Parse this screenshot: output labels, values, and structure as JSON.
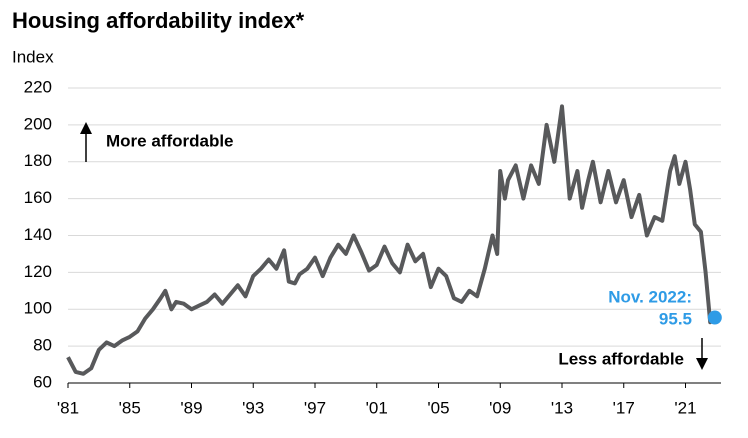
{
  "chart_data": {
    "type": "line",
    "title": "Housing affordability index*",
    "y_label": "Index",
    "x": [
      1981.0,
      1981.5,
      1982.0,
      1982.5,
      1983.0,
      1983.5,
      1984.0,
      1984.5,
      1985.0,
      1985.5,
      1986.0,
      1986.5,
      1987.0,
      1987.3,
      1987.7,
      1988.0,
      1988.5,
      1989.0,
      1989.5,
      1990.0,
      1990.5,
      1991.0,
      1991.5,
      1992.0,
      1992.5,
      1993.0,
      1993.5,
      1994.0,
      1994.5,
      1995.0,
      1995.3,
      1995.7,
      1996.0,
      1996.5,
      1997.0,
      1997.5,
      1998.0,
      1998.5,
      1999.0,
      1999.5,
      2000.0,
      2000.5,
      2001.0,
      2001.5,
      2002.0,
      2002.5,
      2003.0,
      2003.5,
      2004.0,
      2004.5,
      2005.0,
      2005.5,
      2006.0,
      2006.5,
      2007.0,
      2007.5,
      2008.0,
      2008.5,
      2008.8,
      2009.0,
      2009.3,
      2009.5,
      2010.0,
      2010.5,
      2011.0,
      2011.5,
      2012.0,
      2012.5,
      2013.0,
      2013.5,
      2014.0,
      2014.3,
      2014.7,
      2015.0,
      2015.5,
      2016.0,
      2016.5,
      2017.0,
      2017.5,
      2018.0,
      2018.5,
      2019.0,
      2019.5,
      2020.0,
      2020.3,
      2020.6,
      2021.0,
      2021.3,
      2021.6,
      2022.0,
      2022.3,
      2022.6,
      2022.9
    ],
    "values": [
      74,
      66,
      65,
      68,
      78,
      82,
      80,
      83,
      85,
      88,
      95,
      100,
      106,
      110,
      100,
      104,
      103,
      100,
      102,
      104,
      108,
      103,
      108,
      113,
      107,
      118,
      122,
      127,
      122,
      132,
      115,
      114,
      119,
      122,
      128,
      118,
      128,
      135,
      130,
      140,
      131,
      121,
      124,
      134,
      125,
      120,
      135,
      126,
      130,
      112,
      122,
      118,
      106,
      104,
      110,
      107,
      122,
      140,
      130,
      175,
      160,
      170,
      178,
      160,
      178,
      168,
      200,
      180,
      210,
      160,
      175,
      155,
      170,
      180,
      158,
      175,
      158,
      170,
      150,
      162,
      140,
      150,
      148,
      175,
      183,
      168,
      180,
      165,
      146,
      142,
      120,
      93,
      95.5
    ],
    "color": "#58595b",
    "point_color": "#2e9be6",
    "annotations": [
      "More affordable",
      "Less affordable",
      "Nov. 2022:",
      "95.5"
    ],
    "xlim": [
      1981,
      2023.3
    ],
    "ylim": [
      60,
      220
    ],
    "xticks": [
      {
        "value": 1981,
        "label": "'81"
      },
      {
        "value": 1985,
        "label": "'85"
      },
      {
        "value": 1989,
        "label": "'89"
      },
      {
        "value": 1993,
        "label": "'93"
      },
      {
        "value": 1997,
        "label": "'97"
      },
      {
        "value": 2001,
        "label": "'01"
      },
      {
        "value": 2005,
        "label": "'05"
      },
      {
        "value": 2009,
        "label": "'09"
      },
      {
        "value": 2013,
        "label": "'13"
      },
      {
        "value": 2017,
        "label": "'17"
      },
      {
        "value": 2021,
        "label": "'21"
      }
    ],
    "yticks": [
      60,
      80,
      100,
      120,
      140,
      160,
      180,
      200,
      220
    ],
    "grid": true
  }
}
